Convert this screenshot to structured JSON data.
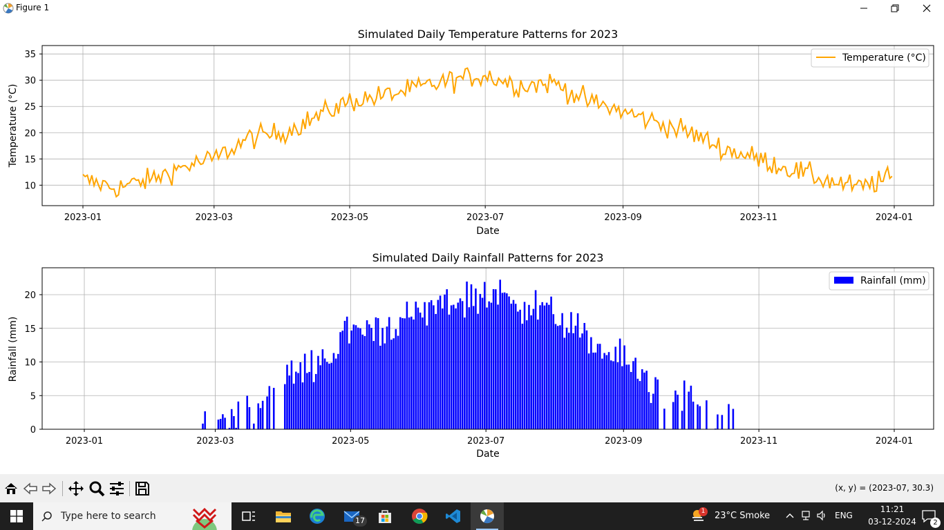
{
  "window": {
    "title": "Figure 1"
  },
  "toolbar": {
    "buttons": [
      {
        "name": "home-icon"
      },
      {
        "name": "back-icon"
      },
      {
        "name": "forward-icon"
      },
      {
        "name": "pan-icon"
      },
      {
        "name": "zoom-icon"
      },
      {
        "name": "configure-subplots-icon"
      },
      {
        "name": "save-icon"
      }
    ],
    "coords": "(x, y) = (2023-07, 30.3)"
  },
  "taskbar": {
    "search_placeholder": "Type here to search",
    "mail_badge": "17",
    "weather": "23°C  Smoke",
    "weather_badge": "1",
    "language": "ENG",
    "time": "11:21",
    "date": "03-12-2024",
    "notifications": "2"
  },
  "colors": {
    "temperature": "#ffa500",
    "rainfall": "#0000ff"
  },
  "chart_data": [
    {
      "type": "line",
      "title": "Simulated Daily Temperature Patterns for 2023",
      "xlabel": "Date",
      "ylabel": "Temperature (°C)",
      "x_ticks": [
        "2023-01",
        "2023-03",
        "2023-05",
        "2023-07",
        "2023-09",
        "2023-11",
        "2024-01"
      ],
      "y_ticks": [
        10,
        15,
        20,
        25,
        30,
        35
      ],
      "ylim": [
        6.1,
        36.6
      ],
      "grid": true,
      "legend_position": "top-right",
      "series": [
        {
          "name": "Temperature (°C)",
          "x_range": [
            "2023-01-01",
            "2023-12-31"
          ],
          "anchor_days": [
            0,
            15,
            30,
            45,
            59,
            75,
            90,
            105,
            120,
            135,
            151,
            166,
            181,
            196,
            212,
            227,
            243,
            258,
            273,
            288,
            304,
            319,
            334,
            349,
            364
          ],
          "anchor_values": [
            11,
            9.5,
            11,
            13.5,
            15,
            19,
            20,
            23,
            26,
            27,
            28.5,
            30,
            31,
            29,
            29.5,
            26,
            24,
            22,
            20,
            17,
            15,
            13,
            11,
            9.5,
            11.5
          ]
        }
      ]
    },
    {
      "type": "bar",
      "title": "Simulated Daily Rainfall Patterns for 2023",
      "xlabel": "Date",
      "ylabel": "Rainfall (mm)",
      "x_ticks": [
        "2023-01",
        "2023-03",
        "2023-05",
        "2023-07",
        "2023-09",
        "2023-11",
        "2024-01"
      ],
      "y_ticks": [
        0,
        5,
        10,
        15,
        20
      ],
      "ylim": [
        0,
        24
      ],
      "grid": true,
      "legend_position": "top-right",
      "series": [
        {
          "name": "Rainfall (mm)",
          "x_range": [
            "2023-02-23",
            "2023-10-20"
          ],
          "anchor_days": [
            53,
            65,
            80,
            95,
            110,
            120,
            135,
            150,
            165,
            181,
            196,
            212,
            227,
            243,
            258,
            273,
            283,
            292
          ],
          "anchor_values": [
            1,
            2.5,
            5,
            8,
            11,
            15,
            15,
            17,
            19,
            20,
            19,
            17,
            13,
            10,
            6,
            4,
            2,
            1
          ]
        }
      ]
    }
  ]
}
